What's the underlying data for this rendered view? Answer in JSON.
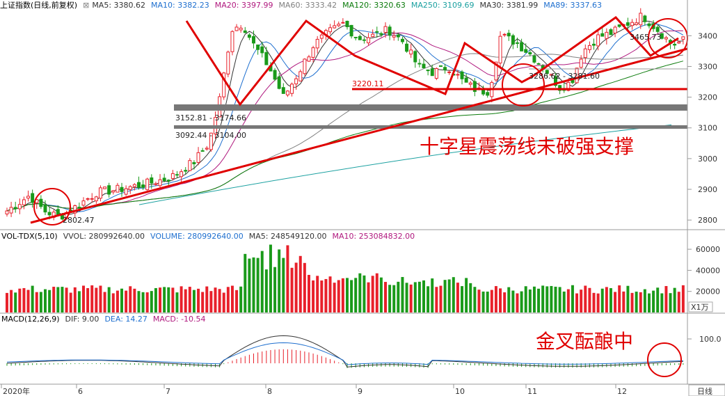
{
  "price_panel": {
    "title": "上证指数(日线,前复权)",
    "ma_labels": [
      {
        "text": "MA5: 3380.62",
        "color": "#333333"
      },
      {
        "text": "MA10: 3382.23",
        "color": "#1e6fcf"
      },
      {
        "text": "MA20: 3397.99",
        "color": "#b0187e"
      },
      {
        "text": "MA60: 3333.42",
        "color": "#808080"
      },
      {
        "text": "MA120: 3320.63",
        "color": "#0a7a0a"
      },
      {
        "text": "MA250: 3109.69",
        "color": "#1aa0a0"
      },
      {
        "text": "MA30: 3381.99",
        "color": "#333333"
      },
      {
        "text": "MA89: 3337.63",
        "color": "#1e6fcf"
      }
    ],
    "y_ticks": [
      "3400",
      "3300",
      "3200",
      "3100",
      "3000",
      "2900",
      "2800"
    ],
    "annotations": {
      "low_label": "2802.47",
      "high_label": "3465.73",
      "resistance_label": "3220.11",
      "gap1_label": "3152.81 - 3174.66",
      "gap2_label": "3092.44 - 3104.00",
      "gap3_label": "3286.62 - 3281.60",
      "main_text": "十字星震荡线未破强支撑"
    }
  },
  "volume_panel": {
    "title": "VOL-TDX(5,10)",
    "labels": [
      {
        "text": "VVOL: 280992640.00",
        "color": "#333333"
      },
      {
        "text": "VOLUME: 280992640.00",
        "color": "#1e6fcf"
      },
      {
        "text": "MA5: 248549120.00",
        "color": "#333333"
      },
      {
        "text": "MA10: 253084832.00",
        "color": "#b0187e"
      }
    ],
    "y_ticks": [
      "60000",
      "40000",
      "20000"
    ],
    "unit": "X1万"
  },
  "macd_panel": {
    "title": "MACD(12,26,9)",
    "labels": [
      {
        "text": "DIF: 9.00",
        "color": "#333333"
      },
      {
        "text": "DEA: 14.27",
        "color": "#1e6fcf"
      },
      {
        "text": "MACD: -10.54",
        "color": "#b0187e"
      }
    ],
    "y_ticks": [
      "100.0"
    ],
    "main_text": "金叉酝酿中"
  },
  "x_axis": {
    "labels": [
      "2020年",
      "6",
      "7",
      "8",
      "9",
      "10",
      "11",
      "12"
    ],
    "period": "日线"
  },
  "colors": {
    "up": "#e8202a",
    "down": "#1a9a1a",
    "annotation": "#e00000"
  },
  "chart_data": [
    {
      "type": "candlestick",
      "title": "上证指数(日线,前复权)",
      "ylim": [
        2780,
        3480
      ],
      "x_period_labels": [
        "2020年",
        "6",
        "7",
        "8",
        "9",
        "10",
        "11",
        "12"
      ],
      "key_levels": {
        "low": 2802.47,
        "high": 3465.73,
        "resistance": 3220.11
      },
      "gaps": [
        [
          3152.81,
          3174.66
        ],
        [
          3092.44,
          3104.0
        ],
        [
          3281.6,
          3286.62
        ]
      ],
      "last_ma": {
        "MA5": 3380.62,
        "MA10": 3382.23,
        "MA20": 3397.99,
        "MA30": 3381.99,
        "MA60": 3333.42,
        "MA89": 3337.63,
        "MA120": 3320.63,
        "MA250": 3109.69
      }
    },
    {
      "type": "bar",
      "title": "VOL-TDX(5,10)",
      "ylim": [
        0,
        68000
      ],
      "last": {
        "VOLUME": 280992640.0,
        "MA5": 248549120.0,
        "MA10": 253084832.0
      }
    },
    {
      "type": "bar",
      "title": "MACD(12,26,9)",
      "last": {
        "DIF": 9.0,
        "DEA": 14.27,
        "MACD": -10.54
      }
    }
  ]
}
